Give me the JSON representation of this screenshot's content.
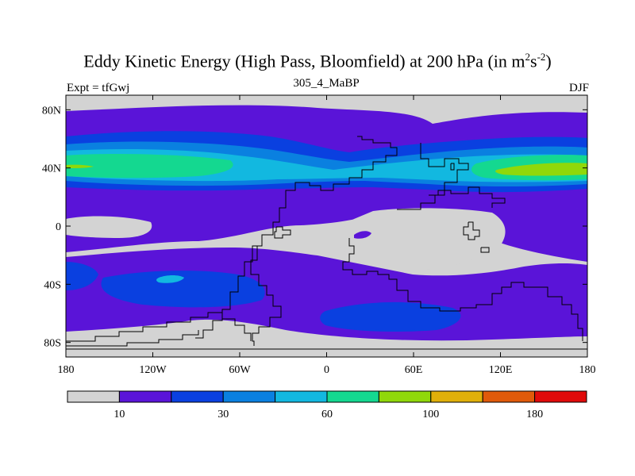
{
  "chart_data": {
    "type": "heatmap",
    "title_main": "Eddy Kinetic Energy (High Pass, Bloomfield) at 200 hPa (in m",
    "title_sup1": "2",
    "title_mid": "s",
    "title_sup2": "-2",
    "title_end": ")",
    "subtitle": "305_4_MaBP",
    "left_label": "Expt = tfGwj",
    "right_label": "DJF",
    "x_ticks": [
      {
        "value": -180,
        "label": "180"
      },
      {
        "value": -120,
        "label": "120W"
      },
      {
        "value": -60,
        "label": "60W"
      },
      {
        "value": 0,
        "label": "0"
      },
      {
        "value": 60,
        "label": "60E"
      },
      {
        "value": 120,
        "label": "120E"
      },
      {
        "value": 180,
        "label": "180"
      }
    ],
    "y_ticks": [
      {
        "value": 80,
        "label": "80N"
      },
      {
        "value": 40,
        "label": "40N"
      },
      {
        "value": 0,
        "label": "0"
      },
      {
        "value": -40,
        "label": "40S"
      },
      {
        "value": -80,
        "label": "80S"
      }
    ],
    "xlim": [
      -180,
      180
    ],
    "ylim": [
      -90,
      90
    ],
    "colorbar": {
      "levels": [
        10,
        20,
        30,
        45,
        60,
        80,
        100,
        120,
        150,
        180
      ],
      "labels": [
        {
          "index": 1,
          "label": "10"
        },
        {
          "index": 3,
          "label": "30"
        },
        {
          "index": 5,
          "label": "60"
        },
        {
          "index": 7,
          "label": "100"
        },
        {
          "index": 9,
          "label": "180"
        }
      ],
      "colors": [
        "#d3d3d3",
        "#5a14d8",
        "#0a40e0",
        "#0a80e0",
        "#12b8e0",
        "#14d890",
        "#90d80a",
        "#e0b00a",
        "#e05a0a",
        "#e00a0a"
      ]
    }
  }
}
